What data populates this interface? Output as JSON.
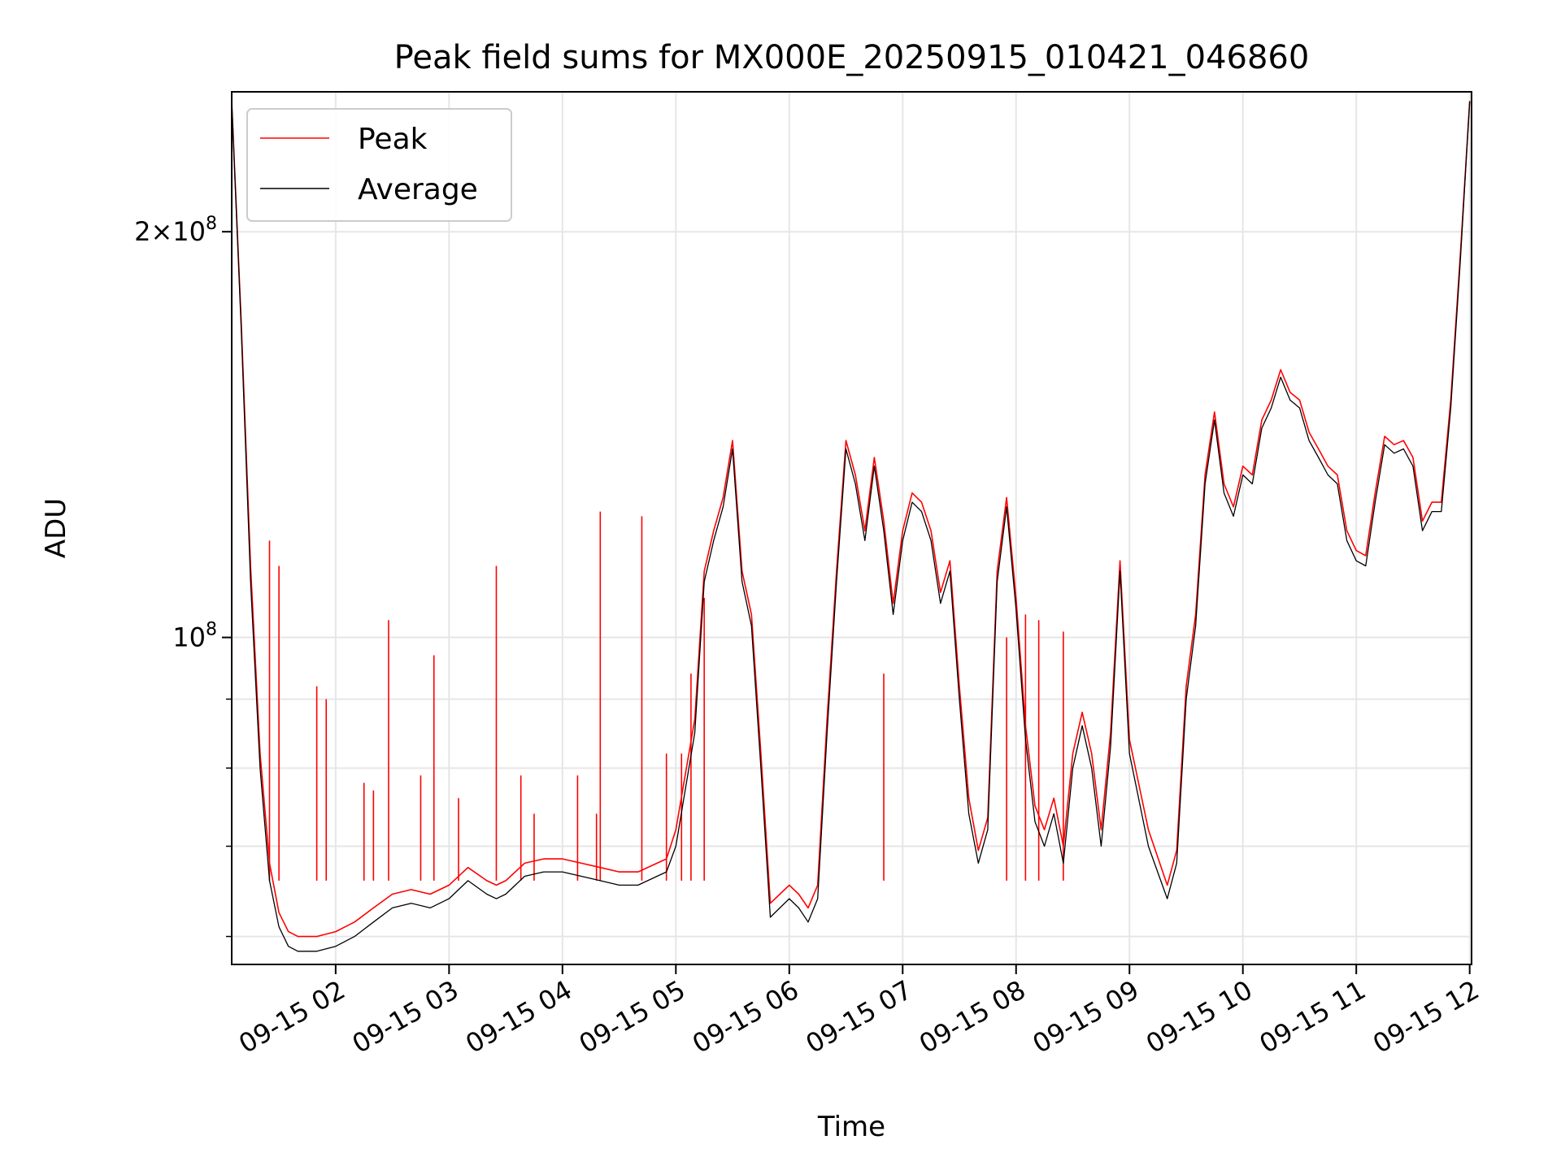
{
  "chart_data": {
    "type": "line",
    "title": "Peak field sums for MX000E_20250915_010421_046860",
    "xlabel": "Time",
    "ylabel": "ADU",
    "yscale": "log",
    "xlim": [
      "2025-09-15 01:05",
      "2025-09-15 12:01"
    ],
    "ylim": [
      57200000,
      254000000
    ],
    "grid": true,
    "legend": {
      "position": "upper-left",
      "entries": [
        "Peak",
        "Average"
      ]
    },
    "x_ticks": [
      "09-15 02",
      "09-15 03",
      "09-15 04",
      "09-15 05",
      "09-15 06",
      "09-15 07",
      "09-15 08",
      "09-15 09",
      "09-15 10",
      "09-15 11",
      "09-15 12"
    ],
    "y_ticks": [
      {
        "value": 100000000,
        "base": "10",
        "exp": "8"
      },
      {
        "value": 200000000,
        "mult": "2",
        "base": "10",
        "exp": "8"
      }
    ],
    "x_tick_values": [
      "2025-09-15 02:00",
      "2025-09-15 03:00",
      "2025-09-15 04:00",
      "2025-09-15 05:00",
      "2025-09-15 06:00",
      "2025-09-15 07:00",
      "2025-09-15 08:00",
      "2025-09-15 09:00",
      "2025-09-15 10:00",
      "2025-09-15 11:00",
      "2025-09-15 12:00"
    ],
    "y_minor_ticks": [
      60000000,
      70000000,
      80000000,
      90000000
    ],
    "series": [
      {
        "name": "Average",
        "color": "#000000",
        "x": [
          "2025-09-15 01:05",
          "2025-09-15 01:10",
          "2025-09-15 01:15",
          "2025-09-15 01:20",
          "2025-09-15 01:25",
          "2025-09-15 01:30",
          "2025-09-15 01:35",
          "2025-09-15 01:40",
          "2025-09-15 01:50",
          "2025-09-15 02:00",
          "2025-09-15 02:10",
          "2025-09-15 02:20",
          "2025-09-15 02:30",
          "2025-09-15 02:40",
          "2025-09-15 02:50",
          "2025-09-15 03:00",
          "2025-09-15 03:10",
          "2025-09-15 03:20",
          "2025-09-15 03:25",
          "2025-09-15 03:30",
          "2025-09-15 03:40",
          "2025-09-15 03:50",
          "2025-09-15 04:00",
          "2025-09-15 04:10",
          "2025-09-15 04:20",
          "2025-09-15 04:30",
          "2025-09-15 04:40",
          "2025-09-15 04:50",
          "2025-09-15 04:55",
          "2025-09-15 05:00",
          "2025-09-15 05:10",
          "2025-09-15 05:15",
          "2025-09-15 05:20",
          "2025-09-15 05:25",
          "2025-09-15 05:30",
          "2025-09-15 05:35",
          "2025-09-15 05:40",
          "2025-09-15 05:45",
          "2025-09-15 05:50",
          "2025-09-15 05:55",
          "2025-09-15 06:00",
          "2025-09-15 06:05",
          "2025-09-15 06:10",
          "2025-09-15 06:15",
          "2025-09-15 06:20",
          "2025-09-15 06:25",
          "2025-09-15 06:30",
          "2025-09-15 06:35",
          "2025-09-15 06:40",
          "2025-09-15 06:45",
          "2025-09-15 06:50",
          "2025-09-15 06:55",
          "2025-09-15 07:00",
          "2025-09-15 07:05",
          "2025-09-15 07:10",
          "2025-09-15 07:15",
          "2025-09-15 07:20",
          "2025-09-15 07:25",
          "2025-09-15 07:30",
          "2025-09-15 07:35",
          "2025-09-15 07:40",
          "2025-09-15 07:45",
          "2025-09-15 07:50",
          "2025-09-15 07:55",
          "2025-09-15 08:00",
          "2025-09-15 08:05",
          "2025-09-15 08:10",
          "2025-09-15 08:15",
          "2025-09-15 08:20",
          "2025-09-15 08:25",
          "2025-09-15 08:30",
          "2025-09-15 08:35",
          "2025-09-15 08:40",
          "2025-09-15 08:45",
          "2025-09-15 08:50",
          "2025-09-15 08:55",
          "2025-09-15 09:00",
          "2025-09-15 09:10",
          "2025-09-15 09:20",
          "2025-09-15 09:25",
          "2025-09-15 09:30",
          "2025-09-15 09:35",
          "2025-09-15 09:40",
          "2025-09-15 09:45",
          "2025-09-15 09:50",
          "2025-09-15 09:55",
          "2025-09-15 10:00",
          "2025-09-15 10:05",
          "2025-09-15 10:10",
          "2025-09-15 10:15",
          "2025-09-15 10:20",
          "2025-09-15 10:25",
          "2025-09-15 10:30",
          "2025-09-15 10:35",
          "2025-09-15 10:40",
          "2025-09-15 10:45",
          "2025-09-15 10:50",
          "2025-09-15 10:55",
          "2025-09-15 11:00",
          "2025-09-15 11:05",
          "2025-09-15 11:10",
          "2025-09-15 11:15",
          "2025-09-15 11:20",
          "2025-09-15 11:25",
          "2025-09-15 11:30",
          "2025-09-15 11:35",
          "2025-09-15 11:40",
          "2025-09-15 11:45",
          "2025-09-15 11:50",
          "2025-09-15 11:55",
          "2025-09-15 12:00"
        ],
        "values": [
          250000000,
          170000000,
          110000000,
          80000000,
          66000000,
          61000000,
          59000000,
          58500000,
          58500000,
          59000000,
          60000000,
          61500000,
          63000000,
          63500000,
          63000000,
          64000000,
          66000000,
          64500000,
          64000000,
          64500000,
          66500000,
          67000000,
          67000000,
          66500000,
          66000000,
          65500000,
          65500000,
          66500000,
          67000000,
          70000000,
          85000000,
          110000000,
          118000000,
          125000000,
          138000000,
          110000000,
          102000000,
          80000000,
          62000000,
          63000000,
          64000000,
          63000000,
          61500000,
          64000000,
          85000000,
          110000000,
          138000000,
          130000000,
          118000000,
          134000000,
          120000000,
          104000000,
          118000000,
          126000000,
          124000000,
          118000000,
          106000000,
          112000000,
          90000000,
          74000000,
          68000000,
          72000000,
          110000000,
          125000000,
          105000000,
          84000000,
          73000000,
          70000000,
          74000000,
          68000000,
          80000000,
          86000000,
          80000000,
          70000000,
          83000000,
          112000000,
          82000000,
          70000000,
          64000000,
          68000000,
          90000000,
          102000000,
          130000000,
          145000000,
          128000000,
          123000000,
          132000000,
          130000000,
          143000000,
          148000000,
          156000000,
          150000000,
          148000000,
          140000000,
          136000000,
          132000000,
          130000000,
          118000000,
          114000000,
          113000000,
          126000000,
          139000000,
          137000000,
          138000000,
          134000000,
          120000000,
          124000000,
          124000000,
          148000000,
          190000000,
          250000000
        ]
      },
      {
        "name": "Peak",
        "color": "#ff0000",
        "x": [
          "2025-09-15 01:05",
          "2025-09-15 01:10",
          "2025-09-15 01:15",
          "2025-09-15 01:20",
          "2025-09-15 01:25",
          "2025-09-15 01:30",
          "2025-09-15 01:35",
          "2025-09-15 01:40",
          "2025-09-15 01:50",
          "2025-09-15 02:00",
          "2025-09-15 02:10",
          "2025-09-15 02:20",
          "2025-09-15 02:30",
          "2025-09-15 02:40",
          "2025-09-15 02:50",
          "2025-09-15 03:00",
          "2025-09-15 03:10",
          "2025-09-15 03:20",
          "2025-09-15 03:25",
          "2025-09-15 03:30",
          "2025-09-15 03:40",
          "2025-09-15 03:50",
          "2025-09-15 04:00",
          "2025-09-15 04:10",
          "2025-09-15 04:20",
          "2025-09-15 04:30",
          "2025-09-15 04:40",
          "2025-09-15 04:50",
          "2025-09-15 04:55",
          "2025-09-15 05:00",
          "2025-09-15 05:10",
          "2025-09-15 05:15",
          "2025-09-15 05:20",
          "2025-09-15 05:25",
          "2025-09-15 05:30",
          "2025-09-15 05:35",
          "2025-09-15 05:40",
          "2025-09-15 05:45",
          "2025-09-15 05:50",
          "2025-09-15 05:55",
          "2025-09-15 06:00",
          "2025-09-15 06:05",
          "2025-09-15 06:10",
          "2025-09-15 06:15",
          "2025-09-15 06:20",
          "2025-09-15 06:25",
          "2025-09-15 06:30",
          "2025-09-15 06:35",
          "2025-09-15 06:40",
          "2025-09-15 06:45",
          "2025-09-15 06:50",
          "2025-09-15 06:55",
          "2025-09-15 07:00",
          "2025-09-15 07:05",
          "2025-09-15 07:10",
          "2025-09-15 07:15",
          "2025-09-15 07:20",
          "2025-09-15 07:25",
          "2025-09-15 07:30",
          "2025-09-15 07:35",
          "2025-09-15 07:40",
          "2025-09-15 07:45",
          "2025-09-15 07:50",
          "2025-09-15 07:55",
          "2025-09-15 08:00",
          "2025-09-15 08:05",
          "2025-09-15 08:10",
          "2025-09-15 08:15",
          "2025-09-15 08:20",
          "2025-09-15 08:25",
          "2025-09-15 08:30",
          "2025-09-15 08:35",
          "2025-09-15 08:40",
          "2025-09-15 08:45",
          "2025-09-15 08:50",
          "2025-09-15 08:55",
          "2025-09-15 09:00",
          "2025-09-15 09:10",
          "2025-09-15 09:20",
          "2025-09-15 09:25",
          "2025-09-15 09:30",
          "2025-09-15 09:35",
          "2025-09-15 09:40",
          "2025-09-15 09:45",
          "2025-09-15 09:50",
          "2025-09-15 09:55",
          "2025-09-15 10:00",
          "2025-09-15 10:05",
          "2025-09-15 10:10",
          "2025-09-15 10:15",
          "2025-09-15 10:20",
          "2025-09-15 10:25",
          "2025-09-15 10:30",
          "2025-09-15 10:35",
          "2025-09-15 10:40",
          "2025-09-15 10:45",
          "2025-09-15 10:50",
          "2025-09-15 10:55",
          "2025-09-15 11:00",
          "2025-09-15 11:05",
          "2025-09-15 11:10",
          "2025-09-15 11:15",
          "2025-09-15 11:20",
          "2025-09-15 11:25",
          "2025-09-15 11:30",
          "2025-09-15 11:35",
          "2025-09-15 11:40",
          "2025-09-15 11:45",
          "2025-09-15 11:50",
          "2025-09-15 11:55",
          "2025-09-15 12:00"
        ],
        "values": [
          250000000,
          172000000,
          113000000,
          82000000,
          68000000,
          62500000,
          60500000,
          60000000,
          60000000,
          60500000,
          61500000,
          63000000,
          64500000,
          65000000,
          64500000,
          65500000,
          67500000,
          66000000,
          65500000,
          66000000,
          68000000,
          68500000,
          68500000,
          68000000,
          67500000,
          67000000,
          67000000,
          68000000,
          68500000,
          72000000,
          87000000,
          112000000,
          120000000,
          127000000,
          140000000,
          112000000,
          104000000,
          82000000,
          63500000,
          64500000,
          65500000,
          64500000,
          63000000,
          65500000,
          87000000,
          112000000,
          140000000,
          132000000,
          120000000,
          136000000,
          122000000,
          106000000,
          120000000,
          128000000,
          126000000,
          120000000,
          108000000,
          114000000,
          92000000,
          76000000,
          69500000,
          73500000,
          112000000,
          127000000,
          107000000,
          86000000,
          75000000,
          72000000,
          76000000,
          70000000,
          82000000,
          88000000,
          82000000,
          72000000,
          85000000,
          114000000,
          84000000,
          72000000,
          65500000,
          69500000,
          92000000,
          104000000,
          132000000,
          147000000,
          130000000,
          125000000,
          134000000,
          132000000,
          145000000,
          150000000,
          158000000,
          152000000,
          150000000,
          142000000,
          138000000,
          134000000,
          132000000,
          120000000,
          116000000,
          115000000,
          128000000,
          141000000,
          139000000,
          140000000,
          136000000,
          122000000,
          126000000,
          126000000,
          150000000,
          192000000,
          250000000
        ]
      }
    ],
    "peak_spikes": [
      {
        "x": "2025-09-15 01:25",
        "value": 118000000
      },
      {
        "x": "2025-09-15 01:30",
        "value": 113000000
      },
      {
        "x": "2025-09-15 01:50",
        "value": 92000000
      },
      {
        "x": "2025-09-15 01:55",
        "value": 90000000
      },
      {
        "x": "2025-09-15 02:15",
        "value": 78000000
      },
      {
        "x": "2025-09-15 02:20",
        "value": 77000000
      },
      {
        "x": "2025-09-15 02:28",
        "value": 103000000
      },
      {
        "x": "2025-09-15 02:45",
        "value": 79000000
      },
      {
        "x": "2025-09-15 02:52",
        "value": 97000000
      },
      {
        "x": "2025-09-15 03:05",
        "value": 76000000
      },
      {
        "x": "2025-09-15 03:25",
        "value": 113000000
      },
      {
        "x": "2025-09-15 03:38",
        "value": 79000000
      },
      {
        "x": "2025-09-15 03:45",
        "value": 74000000
      },
      {
        "x": "2025-09-15 04:08",
        "value": 79000000
      },
      {
        "x": "2025-09-15 04:18",
        "value": 74000000
      },
      {
        "x": "2025-09-15 04:20",
        "value": 124000000
      },
      {
        "x": "2025-09-15 04:42",
        "value": 123000000
      },
      {
        "x": "2025-09-15 04:55",
        "value": 82000000
      },
      {
        "x": "2025-09-15 05:03",
        "value": 82000000
      },
      {
        "x": "2025-09-15 05:08",
        "value": 94000000
      },
      {
        "x": "2025-09-15 05:15",
        "value": 107000000
      },
      {
        "x": "2025-09-15 06:50",
        "value": 94000000
      },
      {
        "x": "2025-09-15 07:55",
        "value": 100000000
      },
      {
        "x": "2025-09-15 08:05",
        "value": 104000000
      },
      {
        "x": "2025-09-15 08:12",
        "value": 103000000
      },
      {
        "x": "2025-09-15 08:25",
        "value": 101000000
      }
    ]
  }
}
